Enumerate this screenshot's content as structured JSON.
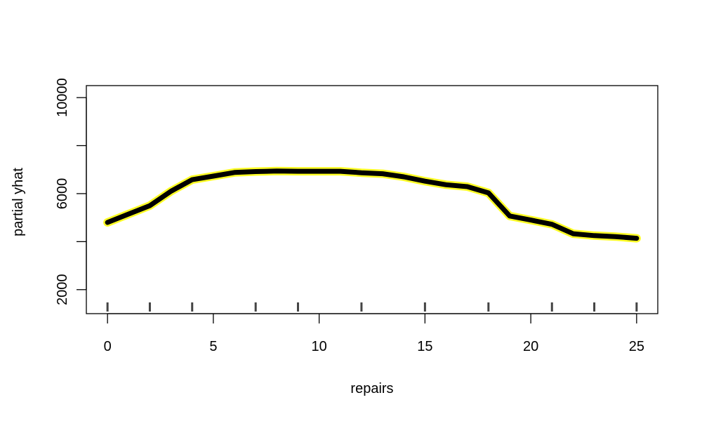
{
  "chart_data": {
    "type": "line",
    "title": "",
    "xlabel": "repairs",
    "ylabel": "partial yhat",
    "xlim": [
      -1,
      26
    ],
    "ylim": [
      1000,
      10500
    ],
    "x_ticks": [
      "0",
      "5",
      "10",
      "15",
      "20",
      "25"
    ],
    "y_ticks": [
      "2000",
      "6000",
      "10000"
    ],
    "y_minor_ticks": [
      4000,
      8000
    ],
    "rug": [
      0,
      2,
      4,
      7,
      9,
      12,
      15,
      18,
      21,
      23,
      25
    ],
    "line_color": "#000000",
    "halo_color": "#ffff00",
    "grid": false,
    "legend": "none",
    "x": [
      0,
      1,
      2,
      3,
      4,
      5,
      6,
      7,
      8,
      9,
      10,
      11,
      12,
      13,
      14,
      15,
      16,
      17,
      18,
      19,
      20,
      21,
      22,
      23,
      24,
      25
    ],
    "values": [
      4800,
      5150,
      5500,
      6100,
      6580,
      6730,
      6880,
      6920,
      6940,
      6930,
      6930,
      6930,
      6870,
      6830,
      6700,
      6520,
      6370,
      6290,
      6030,
      5070,
      4900,
      4720,
      4330,
      4250,
      4210,
      4140
    ]
  }
}
